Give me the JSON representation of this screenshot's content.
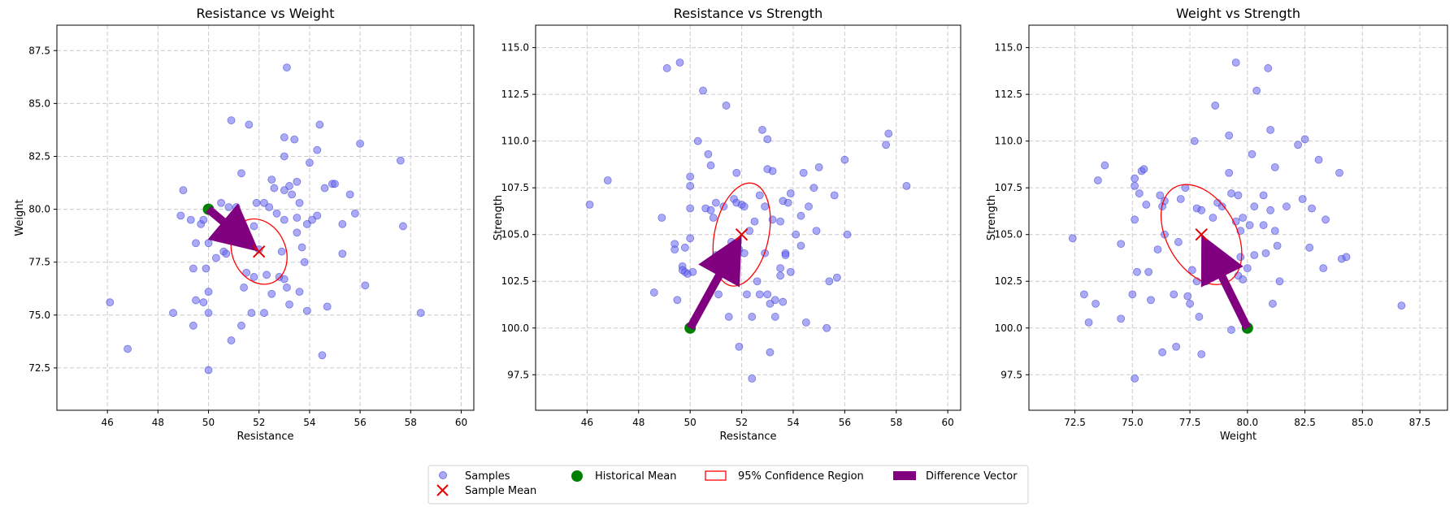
{
  "chart_data": [
    {
      "type": "scatter",
      "title": "Resistance vs Weight",
      "xlabel": "Resistance",
      "ylabel": "Weight",
      "xlim": [
        44.0,
        60.5
      ],
      "ylim": [
        70.5,
        88.7
      ],
      "xticks": [
        46,
        48,
        50,
        52,
        54,
        56,
        58,
        60
      ],
      "xtick_labels": [
        "46",
        "48",
        "50",
        "52",
        "54",
        "56",
        "58",
        "60"
      ],
      "yticks": [
        72.5,
        75.0,
        77.5,
        80.0,
        82.5,
        85.0,
        87.5
      ],
      "ytick_labels": [
        "72.5",
        "75.0",
        "77.5",
        "80.0",
        "82.5",
        "85.0",
        "87.5"
      ],
      "grid": true,
      "samples": [
        [
          46.1,
          75.6
        ],
        [
          46.8,
          73.4
        ],
        [
          48.6,
          75.1
        ],
        [
          48.9,
          79.7
        ],
        [
          49.0,
          80.9
        ],
        [
          49.4,
          77.2
        ],
        [
          49.4,
          74.5
        ],
        [
          49.5,
          78.4
        ],
        [
          49.5,
          75.7
        ],
        [
          49.7,
          79.3
        ],
        [
          49.8,
          79.5
        ],
        [
          49.8,
          75.6
        ],
        [
          49.9,
          77.2
        ],
        [
          50.0,
          78.4
        ],
        [
          50.0,
          76.1
        ],
        [
          50.0,
          75.1
        ],
        [
          50.0,
          72.4
        ],
        [
          50.3,
          77.7
        ],
        [
          50.5,
          80.3
        ],
        [
          50.6,
          78.0
        ],
        [
          50.7,
          77.9
        ],
        [
          50.8,
          80.1
        ],
        [
          50.9,
          73.8
        ],
        [
          50.9,
          84.2
        ],
        [
          51.1,
          80.1
        ],
        [
          51.3,
          81.7
        ],
        [
          51.3,
          74.5
        ],
        [
          51.4,
          76.3
        ],
        [
          51.5,
          77.0
        ],
        [
          51.6,
          84.0
        ],
        [
          51.7,
          75.1
        ],
        [
          51.8,
          76.8
        ],
        [
          51.8,
          79.2
        ],
        [
          51.9,
          80.3
        ],
        [
          52.0,
          78.1
        ],
        [
          52.2,
          75.1
        ],
        [
          52.2,
          80.3
        ],
        [
          52.3,
          76.9
        ],
        [
          52.4,
          80.1
        ],
        [
          52.5,
          81.4
        ],
        [
          52.5,
          76.0
        ],
        [
          52.6,
          81.0
        ],
        [
          52.7,
          79.8
        ],
        [
          52.8,
          76.8
        ],
        [
          53.0,
          82.5
        ],
        [
          53.0,
          83.4
        ],
        [
          53.0,
          80.9
        ],
        [
          53.0,
          76.7
        ],
        [
          53.1,
          86.7
        ],
        [
          53.1,
          76.3
        ],
        [
          53.2,
          75.5
        ],
        [
          53.2,
          81.1
        ],
        [
          53.3,
          80.7
        ],
        [
          53.4,
          83.3
        ],
        [
          53.5,
          81.3
        ],
        [
          53.5,
          79.6
        ],
        [
          53.5,
          78.9
        ],
        [
          53.6,
          76.1
        ],
        [
          53.6,
          80.3
        ],
        [
          53.7,
          78.2
        ],
        [
          53.8,
          77.5
        ],
        [
          53.9,
          79.3
        ],
        [
          53.9,
          75.2
        ],
        [
          54.0,
          82.2
        ],
        [
          54.1,
          79.5
        ],
        [
          54.3,
          82.8
        ],
        [
          54.3,
          79.7
        ],
        [
          54.4,
          84.0
        ],
        [
          54.5,
          73.1
        ],
        [
          54.6,
          81.0
        ],
        [
          54.7,
          75.4
        ],
        [
          54.9,
          81.2
        ],
        [
          55.0,
          81.2
        ],
        [
          55.3,
          77.9
        ],
        [
          55.3,
          79.3
        ],
        [
          55.6,
          80.7
        ],
        [
          55.8,
          79.8
        ],
        [
          56.0,
          83.1
        ],
        [
          56.2,
          76.4
        ],
        [
          57.6,
          82.3
        ],
        [
          57.7,
          79.2
        ],
        [
          58.4,
          75.1
        ],
        [
          53.0,
          79.5
        ],
        [
          52.9,
          78.0
        ],
        [
          49.3,
          79.5
        ]
      ],
      "historical_mean": [
        50.0,
        80.0
      ],
      "sample_mean": [
        52.0,
        78.0
      ],
      "ellipse": {
        "center": [
          52.0,
          78.0
        ],
        "rx": 1.05,
        "ry": 1.6,
        "angle_deg": -25
      },
      "arrow": {
        "from": [
          50.0,
          80.0
        ],
        "to": [
          52.0,
          78.0
        ]
      }
    },
    {
      "type": "scatter",
      "title": "Resistance vs Strength",
      "xlabel": "Resistance",
      "ylabel": "Strength",
      "xlim": [
        44.0,
        60.5
      ],
      "ylim": [
        95.6,
        116.2
      ],
      "xticks": [
        46,
        48,
        50,
        52,
        54,
        56,
        58,
        60
      ],
      "xtick_labels": [
        "46",
        "48",
        "50",
        "52",
        "54",
        "56",
        "58",
        "60"
      ],
      "yticks": [
        97.5,
        100.0,
        102.5,
        105.0,
        107.5,
        110.0,
        112.5,
        115.0
      ],
      "ytick_labels": [
        "97.5",
        "100.0",
        "102.5",
        "105.0",
        "107.5",
        "110.0",
        "112.5",
        "115.0"
      ],
      "grid": true,
      "samples": [
        [
          46.1,
          106.6
        ],
        [
          46.8,
          107.9
        ],
        [
          48.6,
          101.9
        ],
        [
          48.9,
          105.9
        ],
        [
          49.1,
          113.9
        ],
        [
          49.4,
          104.5
        ],
        [
          49.4,
          104.2
        ],
        [
          49.5,
          101.5
        ],
        [
          49.6,
          114.2
        ],
        [
          49.7,
          103.3
        ],
        [
          49.8,
          103.0
        ],
        [
          49.8,
          104.3
        ],
        [
          49.9,
          102.9
        ],
        [
          50.0,
          106.4
        ],
        [
          50.0,
          107.6
        ],
        [
          50.0,
          108.1
        ],
        [
          50.0,
          104.8
        ],
        [
          50.1,
          103.0
        ],
        [
          50.3,
          110.0
        ],
        [
          50.5,
          112.7
        ],
        [
          50.6,
          106.4
        ],
        [
          50.7,
          109.3
        ],
        [
          50.8,
          106.3
        ],
        [
          50.8,
          108.7
        ],
        [
          50.9,
          105.9
        ],
        [
          51.0,
          103.9
        ],
        [
          51.0,
          106.7
        ],
        [
          51.1,
          101.8
        ],
        [
          51.3,
          106.5
        ],
        [
          51.4,
          111.9
        ],
        [
          51.4,
          103.4
        ],
        [
          51.5,
          100.6
        ],
        [
          51.6,
          104.6
        ],
        [
          51.7,
          106.9
        ],
        [
          51.8,
          108.3
        ],
        [
          51.8,
          106.7
        ],
        [
          51.9,
          99.0
        ],
        [
          51.9,
          104.2
        ],
        [
          52.0,
          106.6
        ],
        [
          52.1,
          104.0
        ],
        [
          52.2,
          101.8
        ],
        [
          52.3,
          105.2
        ],
        [
          52.4,
          100.6
        ],
        [
          52.4,
          97.3
        ],
        [
          52.5,
          105.7
        ],
        [
          52.6,
          102.5
        ],
        [
          52.7,
          101.8
        ],
        [
          52.7,
          107.1
        ],
        [
          52.8,
          110.6
        ],
        [
          52.9,
          104.0
        ],
        [
          52.9,
          106.5
        ],
        [
          53.0,
          108.5
        ],
        [
          53.0,
          101.8
        ],
        [
          53.0,
          110.1
        ],
        [
          53.1,
          101.3
        ],
        [
          53.1,
          98.7
        ],
        [
          53.2,
          108.4
        ],
        [
          53.2,
          105.8
        ],
        [
          53.3,
          101.5
        ],
        [
          53.3,
          100.6
        ],
        [
          53.5,
          105.7
        ],
        [
          53.5,
          103.2
        ],
        [
          53.5,
          102.8
        ],
        [
          53.6,
          106.8
        ],
        [
          53.6,
          101.4
        ],
        [
          53.7,
          104.0
        ],
        [
          53.7,
          103.9
        ],
        [
          53.8,
          106.7
        ],
        [
          53.9,
          107.2
        ],
        [
          53.9,
          103.0
        ],
        [
          54.1,
          105.0
        ],
        [
          54.3,
          106.0
        ],
        [
          54.3,
          104.4
        ],
        [
          54.4,
          108.3
        ],
        [
          54.5,
          100.3
        ],
        [
          54.6,
          106.5
        ],
        [
          54.8,
          107.5
        ],
        [
          54.9,
          105.2
        ],
        [
          55.0,
          108.6
        ],
        [
          55.3,
          100.0
        ],
        [
          55.4,
          102.5
        ],
        [
          55.6,
          107.1
        ],
        [
          55.7,
          102.7
        ],
        [
          56.0,
          109.0
        ],
        [
          56.1,
          105.0
        ],
        [
          57.6,
          109.8
        ],
        [
          57.7,
          110.4
        ],
        [
          58.4,
          107.6
        ],
        [
          49.7,
          103.1
        ],
        [
          52.1,
          106.5
        ]
      ],
      "historical_mean": [
        50.0,
        100.0
      ],
      "sample_mean": [
        52.0,
        105.0
      ],
      "ellipse": {
        "center": [
          52.0,
          105.0
        ],
        "rx": 1.05,
        "ry": 2.8,
        "angle_deg": 12
      },
      "arrow": {
        "from": [
          50.0,
          100.0
        ],
        "to": [
          52.0,
          105.0
        ]
      }
    },
    {
      "type": "scatter",
      "title": "Weight vs Strength",
      "xlabel": "Weight",
      "ylabel": "Strength",
      "xlim": [
        70.5,
        88.7
      ],
      "ylim": [
        95.6,
        116.2
      ],
      "xticks": [
        72.5,
        75.0,
        77.5,
        80.0,
        82.5,
        85.0,
        87.5
      ],
      "xtick_labels": [
        "72.5",
        "75.0",
        "77.5",
        "80.0",
        "82.5",
        "85.0",
        "87.5"
      ],
      "yticks": [
        97.5,
        100.0,
        102.5,
        105.0,
        107.5,
        110.0,
        112.5,
        115.0
      ],
      "ytick_labels": [
        "97.5",
        "100.0",
        "102.5",
        "105.0",
        "107.5",
        "110.0",
        "112.5",
        "115.0"
      ],
      "grid": true,
      "samples": [
        [
          72.4,
          104.8
        ],
        [
          72.9,
          101.8
        ],
        [
          73.1,
          100.3
        ],
        [
          73.4,
          101.3
        ],
        [
          73.5,
          107.9
        ],
        [
          73.8,
          108.7
        ],
        [
          74.5,
          104.5
        ],
        [
          74.5,
          100.5
        ],
        [
          75.0,
          101.8
        ],
        [
          75.1,
          105.8
        ],
        [
          75.1,
          108.0
        ],
        [
          75.1,
          107.6
        ],
        [
          75.1,
          97.3
        ],
        [
          75.2,
          103.0
        ],
        [
          75.3,
          107.2
        ],
        [
          75.4,
          108.4
        ],
        [
          75.5,
          108.5
        ],
        [
          75.6,
          106.6
        ],
        [
          75.7,
          103.0
        ],
        [
          75.8,
          101.5
        ],
        [
          76.1,
          104.2
        ],
        [
          76.2,
          107.1
        ],
        [
          76.3,
          106.5
        ],
        [
          76.3,
          98.7
        ],
        [
          76.4,
          106.8
        ],
        [
          76.4,
          105.0
        ],
        [
          76.8,
          101.8
        ],
        [
          76.9,
          99.0
        ],
        [
          77.0,
          104.6
        ],
        [
          77.1,
          106.9
        ],
        [
          77.3,
          107.5
        ],
        [
          77.4,
          101.7
        ],
        [
          77.5,
          101.3
        ],
        [
          77.6,
          103.1
        ],
        [
          77.7,
          110.0
        ],
        [
          77.8,
          102.5
        ],
        [
          77.8,
          106.4
        ],
        [
          77.9,
          100.6
        ],
        [
          78.0,
          98.6
        ],
        [
          78.0,
          106.3
        ],
        [
          78.2,
          102.5
        ],
        [
          78.4,
          104.0
        ],
        [
          78.5,
          105.9
        ],
        [
          78.6,
          111.9
        ],
        [
          78.7,
          106.7
        ],
        [
          78.9,
          106.5
        ],
        [
          79.0,
          103.3
        ],
        [
          79.2,
          108.3
        ],
        [
          79.2,
          110.3
        ],
        [
          79.3,
          99.9
        ],
        [
          79.3,
          107.2
        ],
        [
          79.5,
          114.2
        ],
        [
          79.5,
          105.7
        ],
        [
          79.6,
          102.8
        ],
        [
          79.7,
          105.2
        ],
        [
          79.7,
          103.8
        ],
        [
          79.8,
          105.9
        ],
        [
          79.8,
          102.6
        ],
        [
          80.0,
          103.2
        ],
        [
          80.1,
          105.5
        ],
        [
          80.2,
          109.3
        ],
        [
          80.3,
          103.9
        ],
        [
          80.3,
          106.5
        ],
        [
          80.4,
          112.7
        ],
        [
          80.7,
          107.1
        ],
        [
          80.7,
          105.5
        ],
        [
          80.8,
          104.0
        ],
        [
          80.9,
          113.9
        ],
        [
          81.0,
          106.3
        ],
        [
          81.0,
          110.6
        ],
        [
          81.1,
          101.3
        ],
        [
          81.2,
          108.6
        ],
        [
          81.2,
          105.2
        ],
        [
          81.3,
          104.4
        ],
        [
          81.4,
          102.5
        ],
        [
          81.7,
          106.5
        ],
        [
          82.2,
          109.8
        ],
        [
          82.4,
          106.9
        ],
        [
          82.5,
          110.1
        ],
        [
          82.7,
          104.3
        ],
        [
          82.8,
          106.4
        ],
        [
          83.1,
          109.0
        ],
        [
          83.3,
          103.2
        ],
        [
          83.4,
          105.8
        ],
        [
          84.0,
          108.3
        ],
        [
          84.1,
          103.7
        ],
        [
          84.3,
          103.8
        ],
        [
          86.7,
          101.2
        ],
        [
          79.6,
          107.1
        ]
      ],
      "historical_mean": [
        80.0,
        100.0
      ],
      "sample_mean": [
        78.0,
        105.0
      ],
      "ellipse": {
        "center": [
          78.0,
          105.0
        ],
        "rx": 1.5,
        "ry": 2.9,
        "angle_deg": -30
      },
      "arrow": {
        "from": [
          80.0,
          100.0
        ],
        "to": [
          78.0,
          105.0
        ]
      }
    }
  ],
  "legend": {
    "placement": "bottom-center",
    "entries": [
      {
        "key": "samples",
        "label": "Samples"
      },
      {
        "key": "sample_mean",
        "label": "Sample Mean"
      },
      {
        "key": "historical_mean",
        "label": "Historical Mean"
      },
      {
        "key": "ellipse",
        "label": "95% Confidence Region"
      },
      {
        "key": "arrow",
        "label": "Difference Vector"
      }
    ]
  },
  "colors": {
    "samples": "#6464f0",
    "sample_mean": "#e60000",
    "historical_mean": "#008000",
    "ellipse": "#ff0000",
    "arrow": "#800080",
    "grid": "#cccccc"
  }
}
